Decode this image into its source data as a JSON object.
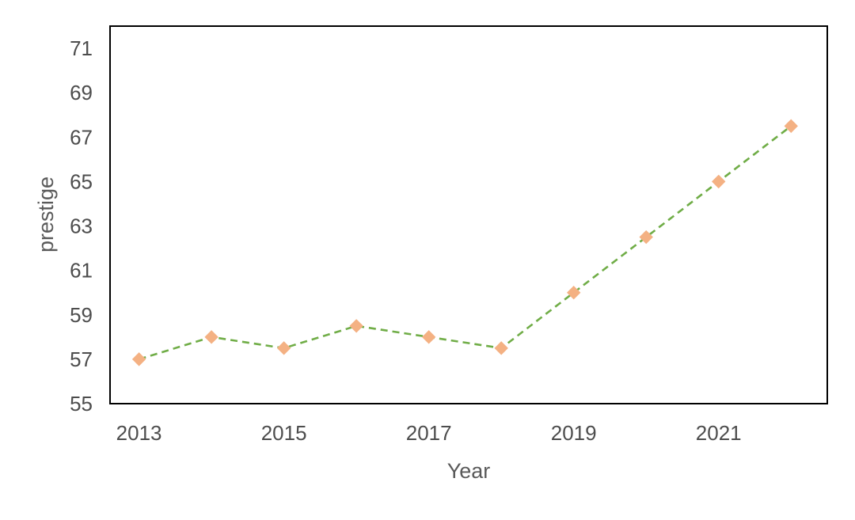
{
  "chart_data": {
    "type": "line",
    "title": "",
    "xlabel": "Year",
    "ylabel": "prestige",
    "xlim": [
      2012.6,
      2022.5
    ],
    "ylim": [
      55,
      72
    ],
    "x_ticks": [
      2013,
      2015,
      2017,
      2019,
      2021
    ],
    "y_ticks": [
      55,
      57,
      59,
      61,
      63,
      65,
      67,
      69,
      71
    ],
    "grid": false,
    "legend": "none",
    "series": [
      {
        "x": [
          2013,
          2014,
          2015,
          2016,
          2017,
          2018,
          2019,
          2020,
          2021,
          2022
        ],
        "values": [
          57.0,
          58.0,
          57.5,
          58.5,
          58.0,
          57.5,
          60.0,
          62.5,
          65.0,
          67.5
        ],
        "line_color": "#70ad47",
        "line_style": "dashed",
        "marker": "diamond",
        "marker_color": "#f4b183"
      }
    ]
  }
}
